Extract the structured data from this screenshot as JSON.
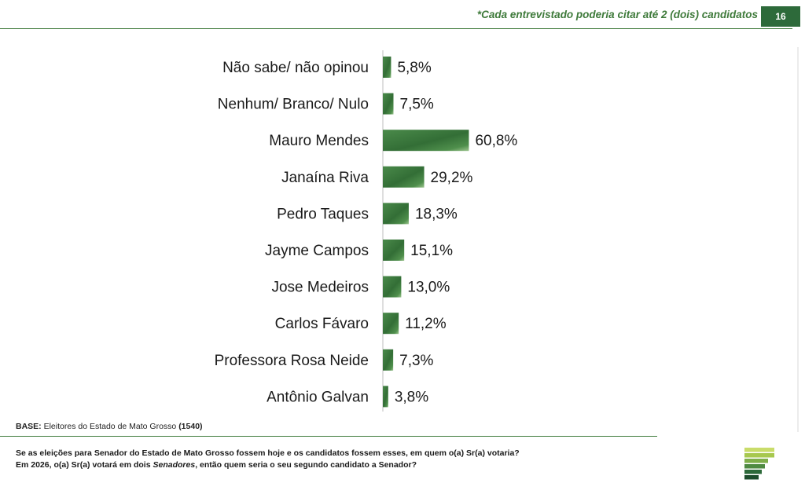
{
  "header": {
    "note": "*Cada entrevistado poderia citar até 2 (dois) candidatos",
    "page_number": "16"
  },
  "chart_data": {
    "type": "bar",
    "orientation": "horizontal",
    "categories": [
      "Não sabe/ não opinou",
      "Nenhum/ Branco/ Nulo",
      "Mauro Mendes",
      "Janaína Riva",
      "Pedro Taques",
      "Jayme Campos",
      "Jose Medeiros",
      "Carlos Fávaro",
      "Professora Rosa Neide",
      "Antônio Galvan"
    ],
    "values": [
      5.8,
      7.5,
      60.8,
      29.2,
      18.3,
      15.1,
      13.0,
      11.2,
      7.3,
      3.8
    ],
    "value_labels": [
      "5,8%",
      "7,5%",
      "60,8%",
      "29,2%",
      "18,3%",
      "15,1%",
      "13,0%",
      "11,2%",
      "7,3%",
      "3,8%"
    ],
    "unit": "%",
    "bar_color": "#3f7b3f",
    "grid": false,
    "legend": "none"
  },
  "footer": {
    "base_label": "BASE:",
    "base_text": "Eleitores do Estado de Mato Grosso",
    "base_count": "(1540)",
    "question_line1": "Se as eleições para Senador do Estado de Mato Grosso fossem hoje e os candidatos fossem esses, em quem o(a) Sr(a) votaria?",
    "question_line2_a": "Em 2026, o(a) Sr(a) votará em dois ",
    "question_line2_em": "Senadores",
    "question_line2_b": ", então quem seria o seu segundo candidato a Senador?"
  },
  "logo": {
    "icon": "striped-flag-logo-icon",
    "colors": [
      "#c9dc6a",
      "#a7c84e",
      "#7fae4a",
      "#4f8a42",
      "#2d6a3a",
      "#1d4d2c"
    ]
  }
}
